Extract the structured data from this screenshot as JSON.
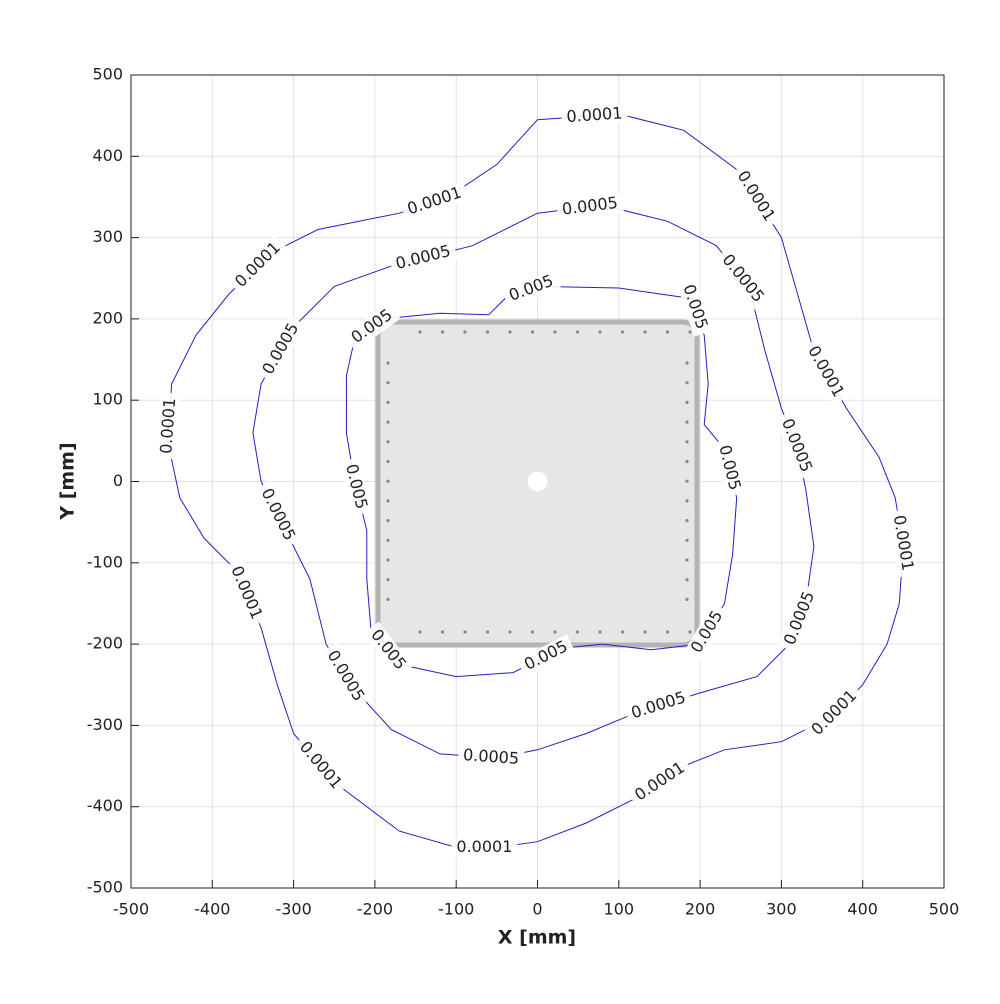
{
  "chart_data": {
    "type": "contour",
    "xlabel": "X [mm]",
    "ylabel": "Y [mm]",
    "xlim": [
      -500,
      500
    ],
    "ylim": [
      -500,
      500
    ],
    "xticks": [
      -500,
      -400,
      -300,
      -200,
      -100,
      0,
      100,
      200,
      300,
      400,
      500
    ],
    "yticks": [
      -500,
      -400,
      -300,
      -200,
      -100,
      0,
      100,
      200,
      300,
      400,
      500
    ],
    "grid": true,
    "series": [
      {
        "name": "0.0001",
        "color": "#2222c0",
        "x": [
          0,
          100,
          180,
          250,
          300,
          320,
          340,
          380,
          420,
          440,
          450,
          445,
          430,
          400,
          360,
          300,
          230,
          180,
          120,
          60,
          0,
          -50,
          -100,
          -170,
          -250,
          -300,
          -320,
          -340,
          -370,
          -410,
          -440,
          -455,
          -450,
          -420,
          -380,
          -330,
          -270,
          -170,
          -110,
          -50,
          0
        ],
        "y": [
          445,
          452,
          432,
          380,
          300,
          230,
          160,
          90,
          30,
          -20,
          -80,
          -150,
          -200,
          -250,
          -290,
          -320,
          -330,
          -350,
          -390,
          -420,
          -443,
          -450,
          -450,
          -430,
          -370,
          -310,
          -250,
          -180,
          -110,
          -70,
          -20,
          50,
          120,
          180,
          230,
          280,
          310,
          330,
          350,
          390,
          445
        ]
      },
      {
        "name": "0.0005",
        "color": "#2222c0",
        "x": [
          0,
          80,
          160,
          220,
          260,
          280,
          300,
          320,
          330,
          340,
          330,
          310,
          270,
          200,
          120,
          60,
          0,
          -50,
          -120,
          -180,
          -230,
          -260,
          -280,
          -310,
          -340,
          -350,
          -340,
          -300,
          -250,
          -180,
          -80,
          0
        ],
        "y": [
          330,
          340,
          320,
          290,
          240,
          160,
          90,
          40,
          -10,
          -80,
          -150,
          -200,
          -240,
          -260,
          -285,
          -310,
          -330,
          -340,
          -335,
          -305,
          -250,
          -200,
          -120,
          -60,
          0,
          60,
          120,
          190,
          240,
          265,
          290,
          330
        ]
      },
      {
        "name": "0.005",
        "color": "#2222c0",
        "x": [
          -60,
          -40,
          0,
          100,
          190,
          205,
          210,
          205,
          230,
          245,
          240,
          230,
          200,
          140,
          80,
          30,
          -30,
          -100,
          -170,
          -205,
          -210,
          -210,
          -225,
          -235,
          -235,
          -225,
          -190,
          -120,
          -60
        ],
        "y": [
          205,
          225,
          240,
          238,
          225,
          180,
          120,
          70,
          40,
          -20,
          -90,
          -150,
          -200,
          -207,
          -200,
          -205,
          -235,
          -240,
          -225,
          -180,
          -120,
          -60,
          0,
          60,
          130,
          175,
          200,
          207,
          205
        ]
      }
    ]
  }
}
